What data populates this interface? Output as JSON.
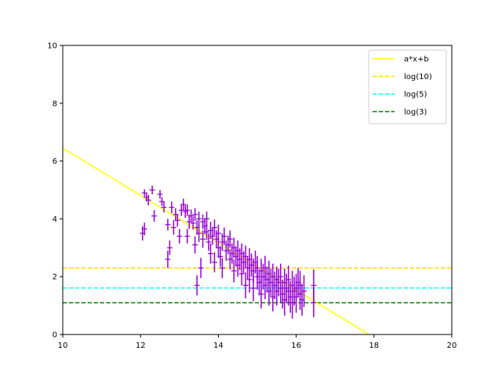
{
  "chart_data": {
    "type": "scatter",
    "title": "",
    "xlabel": "",
    "ylabel": "",
    "xlim": [
      10,
      20
    ],
    "ylim": [
      0,
      10
    ],
    "xticks": [
      "10",
      "12",
      "14",
      "16",
      "18",
      "20"
    ],
    "yticks": [
      "0",
      "2",
      "4",
      "6",
      "8",
      "10"
    ],
    "grid": false,
    "legend_position": "top-right",
    "series": [
      {
        "name": "a*x+b",
        "kind": "line",
        "color": "#ffff00",
        "style": "solid",
        "x": [
          10,
          17.87
        ],
        "y": [
          6.45,
          0
        ]
      },
      {
        "name": "log(10)",
        "kind": "hline",
        "color": "#ffd700",
        "style": "dashed",
        "y": 2.303
      },
      {
        "name": "log(5)",
        "kind": "hline",
        "color": "#00ffff",
        "style": "dashed",
        "y": 1.609
      },
      {
        "name": "log(3)",
        "kind": "hline",
        "color": "#008000",
        "style": "dashed",
        "y": 1.099
      },
      {
        "kind": "errorbar",
        "color": "#9400d3",
        "points": [
          [
            12.05,
            3.5,
            0.25
          ],
          [
            12.1,
            3.65,
            0.22
          ],
          [
            12.1,
            4.9,
            0.12
          ],
          [
            12.15,
            4.75,
            0.15
          ],
          [
            12.2,
            4.65,
            0.18
          ],
          [
            12.3,
            5.0,
            0.15
          ],
          [
            12.35,
            4.1,
            0.2
          ],
          [
            12.5,
            4.85,
            0.15
          ],
          [
            12.55,
            4.6,
            0.15
          ],
          [
            12.6,
            4.4,
            0.18
          ],
          [
            12.7,
            3.8,
            0.2
          ],
          [
            12.7,
            2.6,
            0.3
          ],
          [
            12.75,
            3.0,
            0.25
          ],
          [
            12.8,
            4.4,
            0.2
          ],
          [
            12.85,
            3.7,
            0.25
          ],
          [
            12.9,
            4.15,
            0.22
          ],
          [
            12.95,
            3.95,
            0.22
          ],
          [
            13.0,
            3.4,
            0.25
          ],
          [
            13.05,
            4.3,
            0.2
          ],
          [
            13.1,
            4.5,
            0.2
          ],
          [
            13.15,
            4.25,
            0.22
          ],
          [
            13.2,
            4.3,
            0.2
          ],
          [
            13.2,
            3.4,
            0.25
          ],
          [
            13.25,
            3.9,
            0.25
          ],
          [
            13.3,
            4.1,
            0.22
          ],
          [
            13.35,
            3.85,
            0.22
          ],
          [
            13.4,
            4.15,
            0.22
          ],
          [
            13.4,
            3.1,
            0.3
          ],
          [
            13.45,
            1.7,
            0.35
          ],
          [
            13.45,
            3.7,
            0.25
          ],
          [
            13.5,
            3.5,
            0.3
          ],
          [
            13.5,
            4.0,
            0.25
          ],
          [
            13.55,
            2.3,
            0.35
          ],
          [
            13.6,
            3.9,
            0.25
          ],
          [
            13.6,
            3.3,
            0.3
          ],
          [
            13.65,
            3.75,
            0.28
          ],
          [
            13.7,
            3.55,
            0.28
          ],
          [
            13.7,
            4.0,
            0.25
          ],
          [
            13.75,
            3.2,
            0.3
          ],
          [
            13.8,
            3.6,
            0.3
          ],
          [
            13.8,
            2.8,
            0.35
          ],
          [
            13.85,
            3.4,
            0.3
          ],
          [
            13.9,
            3.7,
            0.28
          ],
          [
            13.9,
            2.5,
            0.35
          ],
          [
            13.95,
            3.3,
            0.3
          ],
          [
            14.0,
            3.0,
            0.35
          ],
          [
            14.0,
            3.5,
            0.3
          ],
          [
            14.05,
            2.7,
            0.35
          ],
          [
            14.1,
            3.2,
            0.3
          ],
          [
            14.1,
            2.3,
            0.35
          ],
          [
            14.15,
            3.4,
            0.3
          ],
          [
            14.2,
            2.9,
            0.35
          ],
          [
            14.25,
            3.1,
            0.32
          ],
          [
            14.3,
            2.6,
            0.35
          ],
          [
            14.3,
            3.3,
            0.3
          ],
          [
            14.35,
            2.8,
            0.35
          ],
          [
            14.4,
            3.0,
            0.35
          ],
          [
            14.4,
            2.2,
            0.4
          ],
          [
            14.45,
            2.7,
            0.35
          ],
          [
            14.5,
            2.9,
            0.35
          ],
          [
            14.5,
            2.4,
            0.4
          ],
          [
            14.55,
            2.6,
            0.38
          ],
          [
            14.6,
            2.8,
            0.35
          ],
          [
            14.6,
            2.1,
            0.4
          ],
          [
            14.65,
            2.5,
            0.38
          ],
          [
            14.7,
            1.7,
            0.45
          ],
          [
            14.7,
            2.7,
            0.38
          ],
          [
            14.75,
            2.3,
            0.4
          ],
          [
            14.8,
            2.6,
            0.38
          ],
          [
            14.8,
            1.9,
            0.45
          ],
          [
            14.85,
            2.4,
            0.4
          ],
          [
            14.9,
            2.2,
            0.42
          ],
          [
            14.9,
            1.6,
            0.45
          ],
          [
            14.95,
            2.5,
            0.4
          ],
          [
            15.0,
            2.0,
            0.45
          ],
          [
            15.0,
            2.3,
            0.42
          ],
          [
            15.05,
            1.8,
            0.45
          ],
          [
            15.1,
            2.2,
            0.42
          ],
          [
            15.1,
            1.4,
            0.5
          ],
          [
            15.15,
            2.0,
            0.45
          ],
          [
            15.2,
            1.7,
            0.48
          ],
          [
            15.2,
            2.3,
            0.42
          ],
          [
            15.25,
            1.9,
            0.45
          ],
          [
            15.3,
            1.5,
            0.5
          ],
          [
            15.3,
            2.1,
            0.45
          ],
          [
            15.35,
            1.8,
            0.48
          ],
          [
            15.4,
            2.0,
            0.45
          ],
          [
            15.4,
            1.3,
            0.5
          ],
          [
            15.45,
            1.7,
            0.48
          ],
          [
            15.5,
            1.9,
            0.45
          ],
          [
            15.5,
            1.5,
            0.5
          ],
          [
            15.55,
            1.8,
            0.48
          ],
          [
            15.6,
            1.6,
            0.5
          ],
          [
            15.6,
            2.0,
            0.45
          ],
          [
            15.65,
            1.4,
            0.5
          ],
          [
            15.7,
            1.8,
            0.48
          ],
          [
            15.7,
            1.2,
            0.55
          ],
          [
            15.75,
            1.6,
            0.5
          ],
          [
            15.8,
            1.5,
            0.5
          ],
          [
            15.8,
            1.9,
            0.48
          ],
          [
            15.85,
            1.3,
            0.55
          ],
          [
            15.9,
            1.7,
            0.5
          ],
          [
            15.9,
            1.1,
            0.55
          ],
          [
            15.95,
            1.5,
            0.5
          ],
          [
            16.0,
            1.6,
            0.5
          ],
          [
            16.0,
            1.3,
            0.55
          ],
          [
            16.05,
            1.8,
            0.5
          ],
          [
            16.1,
            1.4,
            0.55
          ],
          [
            16.1,
            1.7,
            0.5
          ],
          [
            16.15,
            1.2,
            0.55
          ],
          [
            16.2,
            1.5,
            0.55
          ],
          [
            16.45,
            1.1,
            0.5
          ],
          [
            16.45,
            1.7,
            0.55
          ]
        ]
      }
    ]
  }
}
